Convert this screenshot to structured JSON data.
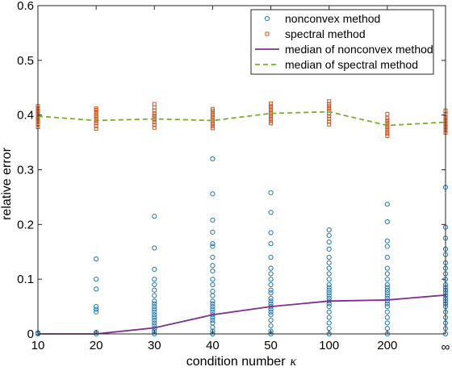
{
  "chart_data": {
    "type": "scatter",
    "title": "",
    "xlabel": "condition number",
    "xlabel_symbol": "κ",
    "ylabel": "relative error",
    "categories": [
      "10",
      "20",
      "30",
      "40",
      "50",
      "100",
      "200",
      "∞"
    ],
    "ylim": [
      0,
      0.6
    ],
    "yticks": [
      "0",
      "0.1",
      "0.2",
      "0.3",
      "0.4",
      "0.5",
      "0.6"
    ],
    "grid": false,
    "legend_position": "top-right",
    "colors": {
      "nonconvex": "#1f77b4",
      "spectral": "#d95319",
      "median_nonconvex": "#7e2f8e",
      "median_spectral": "#77ac30"
    },
    "legend": [
      {
        "key": "nonconvex",
        "label": "nonconvex method"
      },
      {
        "key": "spectral",
        "label": "spectral method"
      },
      {
        "key": "median_nonconvex",
        "label": "median of nonconvex method"
      },
      {
        "key": "median_spectral",
        "label": "median of spectral method"
      }
    ],
    "series": [
      {
        "name": "nonconvex method",
        "key": "nonconvex",
        "points": [
          [
            0,
            0.0
          ],
          [
            0,
            0.001
          ],
          [
            0,
            0.002
          ],
          [
            1,
            0.0
          ],
          [
            1,
            0.003
          ],
          [
            1,
            0.04
          ],
          [
            1,
            0.045
          ],
          [
            1,
            0.05
          ],
          [
            1,
            0.082
          ],
          [
            1,
            0.1
          ],
          [
            1,
            0.137
          ],
          [
            2,
            0.0
          ],
          [
            2,
            0.005
          ],
          [
            2,
            0.01
          ],
          [
            2,
            0.015
          ],
          [
            2,
            0.02
          ],
          [
            2,
            0.025
          ],
          [
            2,
            0.03
          ],
          [
            2,
            0.035
          ],
          [
            2,
            0.04
          ],
          [
            2,
            0.045
          ],
          [
            2,
            0.05
          ],
          [
            2,
            0.055
          ],
          [
            2,
            0.06
          ],
          [
            2,
            0.07
          ],
          [
            2,
            0.08
          ],
          [
            2,
            0.09
          ],
          [
            2,
            0.1
          ],
          [
            2,
            0.118
          ],
          [
            2,
            0.157
          ],
          [
            2,
            0.215
          ],
          [
            3,
            0.0
          ],
          [
            3,
            0.005
          ],
          [
            3,
            0.012
          ],
          [
            3,
            0.02
          ],
          [
            3,
            0.025
          ],
          [
            3,
            0.03
          ],
          [
            3,
            0.035
          ],
          [
            3,
            0.04
          ],
          [
            3,
            0.045
          ],
          [
            3,
            0.05
          ],
          [
            3,
            0.055
          ],
          [
            3,
            0.06
          ],
          [
            3,
            0.07
          ],
          [
            3,
            0.078
          ],
          [
            3,
            0.09
          ],
          [
            3,
            0.1
          ],
          [
            3,
            0.115
          ],
          [
            3,
            0.125
          ],
          [
            3,
            0.14
          ],
          [
            3,
            0.16
          ],
          [
            3,
            0.165
          ],
          [
            3,
            0.186
          ],
          [
            3,
            0.208
          ],
          [
            3,
            0.256
          ],
          [
            3,
            0.32
          ],
          [
            4,
            0.0
          ],
          [
            4,
            0.005
          ],
          [
            4,
            0.015
          ],
          [
            4,
            0.025
          ],
          [
            4,
            0.035
          ],
          [
            4,
            0.04
          ],
          [
            4,
            0.045
          ],
          [
            4,
            0.05
          ],
          [
            4,
            0.055
          ],
          [
            4,
            0.06
          ],
          [
            4,
            0.065
          ],
          [
            4,
            0.075
          ],
          [
            4,
            0.08
          ],
          [
            4,
            0.09
          ],
          [
            4,
            0.1
          ],
          [
            4,
            0.11
          ],
          [
            4,
            0.12
          ],
          [
            4,
            0.14
          ],
          [
            4,
            0.165
          ],
          [
            4,
            0.185
          ],
          [
            4,
            0.222
          ],
          [
            4,
            0.258
          ],
          [
            5,
            0.0
          ],
          [
            5,
            0.01
          ],
          [
            5,
            0.02
          ],
          [
            5,
            0.03
          ],
          [
            5,
            0.04
          ],
          [
            5,
            0.05
          ],
          [
            5,
            0.055
          ],
          [
            5,
            0.06
          ],
          [
            5,
            0.065
          ],
          [
            5,
            0.07
          ],
          [
            5,
            0.075
          ],
          [
            5,
            0.08
          ],
          [
            5,
            0.085
          ],
          [
            5,
            0.09
          ],
          [
            5,
            0.1
          ],
          [
            5,
            0.11
          ],
          [
            5,
            0.12
          ],
          [
            5,
            0.13
          ],
          [
            5,
            0.14
          ],
          [
            5,
            0.155
          ],
          [
            5,
            0.168
          ],
          [
            5,
            0.18
          ],
          [
            5,
            0.19
          ],
          [
            6,
            0.0
          ],
          [
            6,
            0.01
          ],
          [
            6,
            0.02
          ],
          [
            6,
            0.03
          ],
          [
            6,
            0.04
          ],
          [
            6,
            0.05
          ],
          [
            6,
            0.055
          ],
          [
            6,
            0.06
          ],
          [
            6,
            0.065
          ],
          [
            6,
            0.07
          ],
          [
            6,
            0.075
          ],
          [
            6,
            0.08
          ],
          [
            6,
            0.085
          ],
          [
            6,
            0.09
          ],
          [
            6,
            0.1
          ],
          [
            6,
            0.11
          ],
          [
            6,
            0.12
          ],
          [
            6,
            0.14
          ],
          [
            6,
            0.16
          ],
          [
            6,
            0.17
          ],
          [
            6,
            0.205
          ],
          [
            6,
            0.237
          ],
          [
            7,
            0.0
          ],
          [
            7,
            0.01
          ],
          [
            7,
            0.02
          ],
          [
            7,
            0.03
          ],
          [
            7,
            0.04
          ],
          [
            7,
            0.05
          ],
          [
            7,
            0.055
          ],
          [
            7,
            0.06
          ],
          [
            7,
            0.065
          ],
          [
            7,
            0.07
          ],
          [
            7,
            0.075
          ],
          [
            7,
            0.08
          ],
          [
            7,
            0.085
          ],
          [
            7,
            0.09
          ],
          [
            7,
            0.1
          ],
          [
            7,
            0.11
          ],
          [
            7,
            0.12
          ],
          [
            7,
            0.13
          ],
          [
            7,
            0.145
          ],
          [
            7,
            0.155
          ],
          [
            7,
            0.175
          ],
          [
            7,
            0.195
          ],
          [
            7,
            0.268
          ]
        ]
      },
      {
        "name": "spectral method",
        "key": "spectral",
        "points": [
          [
            0,
            0.378
          ],
          [
            0,
            0.383
          ],
          [
            0,
            0.388
          ],
          [
            0,
            0.392
          ],
          [
            0,
            0.396
          ],
          [
            0,
            0.4
          ],
          [
            0,
            0.404
          ],
          [
            0,
            0.408
          ],
          [
            0,
            0.412
          ],
          [
            0,
            0.416
          ],
          [
            1,
            0.375
          ],
          [
            1,
            0.38
          ],
          [
            1,
            0.385
          ],
          [
            1,
            0.389
          ],
          [
            1,
            0.393
          ],
          [
            1,
            0.397
          ],
          [
            1,
            0.401
          ],
          [
            1,
            0.405
          ],
          [
            1,
            0.409
          ],
          [
            1,
            0.412
          ],
          [
            2,
            0.377
          ],
          [
            2,
            0.382
          ],
          [
            2,
            0.387
          ],
          [
            2,
            0.391
          ],
          [
            2,
            0.395
          ],
          [
            2,
            0.399
          ],
          [
            2,
            0.403
          ],
          [
            2,
            0.408
          ],
          [
            2,
            0.414
          ],
          [
            2,
            0.42
          ],
          [
            3,
            0.376
          ],
          [
            3,
            0.38
          ],
          [
            3,
            0.384
          ],
          [
            3,
            0.388
          ],
          [
            3,
            0.392
          ],
          [
            3,
            0.396
          ],
          [
            3,
            0.4
          ],
          [
            3,
            0.404
          ],
          [
            3,
            0.408
          ],
          [
            3,
            0.411
          ],
          [
            4,
            0.385
          ],
          [
            4,
            0.389
          ],
          [
            4,
            0.393
          ],
          [
            4,
            0.397
          ],
          [
            4,
            0.401
          ],
          [
            4,
            0.405
          ],
          [
            4,
            0.409
          ],
          [
            4,
            0.413
          ],
          [
            4,
            0.417
          ],
          [
            4,
            0.421
          ],
          [
            5,
            0.383
          ],
          [
            5,
            0.388
          ],
          [
            5,
            0.393
          ],
          [
            5,
            0.398
          ],
          [
            5,
            0.403
          ],
          [
            5,
            0.408
          ],
          [
            5,
            0.412
          ],
          [
            5,
            0.416
          ],
          [
            5,
            0.42
          ],
          [
            5,
            0.425
          ],
          [
            6,
            0.362
          ],
          [
            6,
            0.366
          ],
          [
            6,
            0.37
          ],
          [
            6,
            0.374
          ],
          [
            6,
            0.378
          ],
          [
            6,
            0.382
          ],
          [
            6,
            0.386
          ],
          [
            6,
            0.39
          ],
          [
            6,
            0.394
          ],
          [
            6,
            0.402
          ],
          [
            7,
            0.368
          ],
          [
            7,
            0.372
          ],
          [
            7,
            0.376
          ],
          [
            7,
            0.38
          ],
          [
            7,
            0.384
          ],
          [
            7,
            0.388
          ],
          [
            7,
            0.392
          ],
          [
            7,
            0.396
          ],
          [
            7,
            0.401
          ],
          [
            7,
            0.408
          ]
        ]
      },
      {
        "name": "median of nonconvex method",
        "key": "median_nonconvex",
        "values": [
          0.0,
          0.0,
          0.011,
          0.035,
          0.05,
          0.06,
          0.062,
          0.071
        ]
      },
      {
        "name": "median of spectral method",
        "key": "median_spectral",
        "values": [
          0.398,
          0.39,
          0.393,
          0.39,
          0.403,
          0.406,
          0.381,
          0.387
        ]
      }
    ]
  }
}
